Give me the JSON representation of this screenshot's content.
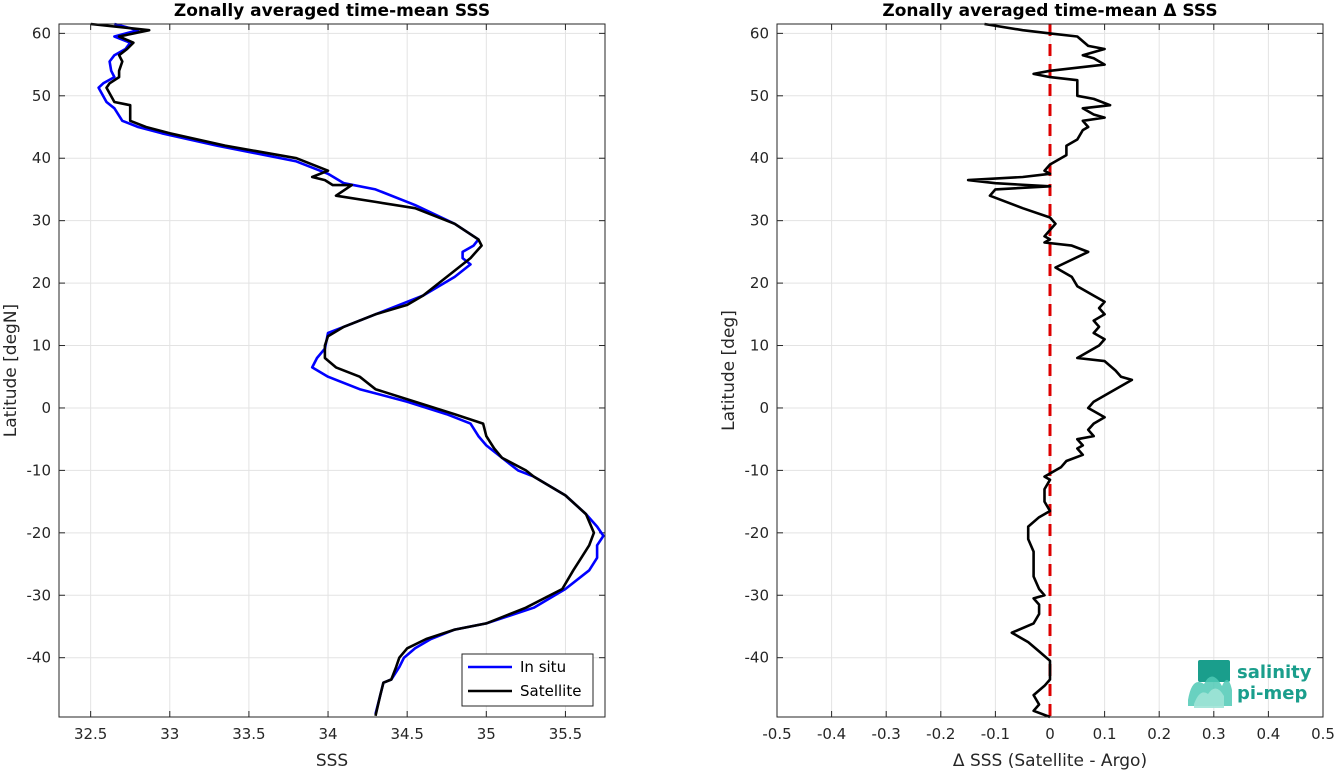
{
  "chart_data": [
    {
      "type": "line",
      "title": "Zonally averaged time-mean SSS",
      "xlabel": "SSS",
      "ylabel": "Latitude [degN]",
      "xlim": [
        32.3,
        35.75
      ],
      "ylim": [
        -49.5,
        61.5
      ],
      "xticks": [
        "32.5",
        "33",
        "33.5",
        "34",
        "34.5",
        "35",
        "35.5"
      ],
      "yticks": [
        "60",
        "50",
        "40",
        "30",
        "20",
        "10",
        "0",
        "-10",
        "-20",
        "-30",
        "-40"
      ],
      "grid": true,
      "legend_position": "bottom-right",
      "series": [
        {
          "name": "In situ",
          "color": "#0000ff",
          "points": [
            [
              32.65,
              61.5
            ],
            [
              32.8,
              60.5
            ],
            [
              32.65,
              59.5
            ],
            [
              32.75,
              58.5
            ],
            [
              32.72,
              57.5
            ],
            [
              32.65,
              56.5
            ],
            [
              32.62,
              55.5
            ],
            [
              32.63,
              54
            ],
            [
              32.65,
              53
            ],
            [
              32.58,
              52
            ],
            [
              32.55,
              51.3
            ],
            [
              32.6,
              49
            ],
            [
              32.65,
              48
            ],
            [
              32.7,
              46
            ],
            [
              32.8,
              45
            ],
            [
              32.95,
              44
            ],
            [
              33.3,
              42
            ],
            [
              33.8,
              39.5
            ],
            [
              34.0,
              37.5
            ],
            [
              34.1,
              36
            ],
            [
              34.3,
              35
            ],
            [
              34.55,
              32.5
            ],
            [
              34.8,
              29.5
            ],
            [
              34.95,
              27
            ],
            [
              34.92,
              26
            ],
            [
              34.85,
              25
            ],
            [
              34.85,
              24
            ],
            [
              34.9,
              23
            ],
            [
              34.8,
              21
            ],
            [
              34.6,
              18
            ],
            [
              34.45,
              16.5
            ],
            [
              34.3,
              15
            ],
            [
              34.1,
              13
            ],
            [
              34.0,
              12
            ],
            [
              33.98,
              9.5
            ],
            [
              33.93,
              8
            ],
            [
              33.9,
              6.5
            ],
            [
              34.0,
              5
            ],
            [
              34.2,
              3
            ],
            [
              34.5,
              1
            ],
            [
              34.75,
              -1
            ],
            [
              34.9,
              -2.5
            ],
            [
              34.95,
              -4.5
            ],
            [
              35.0,
              -6
            ],
            [
              35.1,
              -8
            ],
            [
              35.2,
              -10
            ],
            [
              35.3,
              -11
            ],
            [
              35.5,
              -14
            ],
            [
              35.63,
              -17
            ],
            [
              35.7,
              -19
            ],
            [
              35.74,
              -20.5
            ],
            [
              35.7,
              -22
            ],
            [
              35.7,
              -24
            ],
            [
              35.65,
              -26
            ],
            [
              35.5,
              -29
            ],
            [
              35.3,
              -32
            ],
            [
              35.0,
              -34.5
            ],
            [
              34.8,
              -35.5
            ],
            [
              34.65,
              -37
            ],
            [
              34.55,
              -38.5
            ],
            [
              34.48,
              -40
            ],
            [
              34.45,
              -41.5
            ],
            [
              34.4,
              -43.5
            ],
            [
              34.35,
              -44
            ],
            [
              34.33,
              -46
            ],
            [
              34.3,
              -49
            ]
          ]
        },
        {
          "name": "Satellite",
          "color": "#000000",
          "points": [
            [
              32.5,
              61.5
            ],
            [
              32.87,
              60.5
            ],
            [
              32.68,
              59.5
            ],
            [
              32.77,
              58.5
            ],
            [
              32.73,
              57.5
            ],
            [
              32.68,
              56.5
            ],
            [
              32.7,
              55.5
            ],
            [
              32.68,
              54
            ],
            [
              32.68,
              53
            ],
            [
              32.62,
              52
            ],
            [
              32.6,
              51.3
            ],
            [
              32.65,
              49
            ],
            [
              32.75,
              48.5
            ],
            [
              32.75,
              46
            ],
            [
              32.85,
              45
            ],
            [
              33.0,
              44
            ],
            [
              33.35,
              42
            ],
            [
              33.8,
              40
            ],
            [
              34.0,
              38
            ],
            [
              33.9,
              37
            ],
            [
              33.98,
              36.5
            ],
            [
              34.03,
              35.7
            ],
            [
              34.15,
              35.7
            ],
            [
              34.05,
              34
            ],
            [
              34.3,
              33
            ],
            [
              34.55,
              32
            ],
            [
              34.8,
              29.5
            ],
            [
              34.95,
              27
            ],
            [
              34.97,
              26
            ],
            [
              34.9,
              24
            ],
            [
              34.8,
              22
            ],
            [
              34.6,
              18
            ],
            [
              34.5,
              16.5
            ],
            [
              34.3,
              15
            ],
            [
              34.1,
              13
            ],
            [
              34.0,
              11.5
            ],
            [
              33.98,
              10
            ],
            [
              33.98,
              8
            ],
            [
              34.05,
              6.5
            ],
            [
              34.2,
              5
            ],
            [
              34.3,
              3
            ],
            [
              34.55,
              1
            ],
            [
              34.8,
              -1
            ],
            [
              34.98,
              -2.5
            ],
            [
              35.0,
              -4.5
            ],
            [
              35.05,
              -6.5
            ],
            [
              35.1,
              -8
            ],
            [
              35.25,
              -10
            ],
            [
              35.3,
              -11
            ],
            [
              35.5,
              -14
            ],
            [
              35.63,
              -17
            ],
            [
              35.68,
              -20
            ],
            [
              35.65,
              -22
            ],
            [
              35.6,
              -24
            ],
            [
              35.55,
              -26
            ],
            [
              35.48,
              -29
            ],
            [
              35.25,
              -32
            ],
            [
              35.0,
              -34.5
            ],
            [
              34.8,
              -35.5
            ],
            [
              34.62,
              -37
            ],
            [
              34.5,
              -38.5
            ],
            [
              34.45,
              -40
            ],
            [
              34.43,
              -41.5
            ],
            [
              34.4,
              -43.5
            ],
            [
              34.35,
              -44
            ],
            [
              34.33,
              -46
            ],
            [
              34.3,
              -49.3
            ]
          ]
        }
      ]
    },
    {
      "type": "line",
      "title": "Zonally averaged time-mean Δ SSS",
      "xlabel": "Δ SSS (Satellite - Argo)",
      "ylabel": "Latitude [deg]",
      "xlim": [
        -0.5,
        0.5
      ],
      "ylim": [
        -49.5,
        61.5
      ],
      "xticks": [
        "-0.5",
        "-0.4",
        "-0.3",
        "-0.2",
        "-0.1",
        "0",
        "0.1",
        "0.2",
        "0.3",
        "0.4",
        "0.5"
      ],
      "yticks": [
        "60",
        "50",
        "40",
        "30",
        "20",
        "10",
        "0",
        "-10",
        "-20",
        "-30",
        "-40"
      ],
      "grid": true,
      "reference_line": {
        "x": 0,
        "color": "#dd0000",
        "style": "dashed"
      },
      "series": [
        {
          "name": "",
          "color": "#000000",
          "points": [
            [
              -0.12,
              61.5
            ],
            [
              -0.05,
              60.5
            ],
            [
              0.0,
              60
            ],
            [
              0.05,
              59.5
            ],
            [
              0.07,
              58
            ],
            [
              0.1,
              57.5
            ],
            [
              0.06,
              56.5
            ],
            [
              0.08,
              56
            ],
            [
              0.1,
              55
            ],
            [
              0.05,
              54.5
            ],
            [
              0.0,
              54
            ],
            [
              -0.03,
              53.5
            ],
            [
              0.0,
              53
            ],
            [
              0.05,
              52.5
            ],
            [
              0.05,
              50
            ],
            [
              0.08,
              49.5
            ],
            [
              0.11,
              48.5
            ],
            [
              0.06,
              48
            ],
            [
              0.08,
              47
            ],
            [
              0.1,
              46.5
            ],
            [
              0.06,
              46
            ],
            [
              0.07,
              45
            ],
            [
              0.06,
              44.5
            ],
            [
              0.05,
              43
            ],
            [
              0.03,
              42
            ],
            [
              0.03,
              40.5
            ],
            [
              0.0,
              39
            ],
            [
              -0.01,
              38
            ],
            [
              0.0,
              37.5
            ],
            [
              -0.05,
              37
            ],
            [
              -0.15,
              36.5
            ],
            [
              -0.1,
              36
            ],
            [
              0.0,
              35.5
            ],
            [
              -0.1,
              35
            ],
            [
              -0.11,
              34
            ],
            [
              -0.05,
              32
            ],
            [
              0.0,
              30.5
            ],
            [
              0.01,
              29.5
            ],
            [
              0.0,
              28.5
            ],
            [
              -0.01,
              27.5
            ],
            [
              0.0,
              27
            ],
            [
              -0.01,
              26.5
            ],
            [
              0.04,
              26
            ],
            [
              0.07,
              25
            ],
            [
              0.01,
              22.5
            ],
            [
              0.02,
              22
            ],
            [
              0.04,
              21
            ],
            [
              0.05,
              19.5
            ],
            [
              0.08,
              18
            ],
            [
              0.1,
              17
            ],
            [
              0.09,
              16
            ],
            [
              0.1,
              15
            ],
            [
              0.08,
              14
            ],
            [
              0.09,
              13
            ],
            [
              0.08,
              12
            ],
            [
              0.1,
              11
            ],
            [
              0.09,
              10
            ],
            [
              0.07,
              9
            ],
            [
              0.05,
              8
            ],
            [
              0.1,
              7.5
            ],
            [
              0.12,
              6
            ],
            [
              0.13,
              5
            ],
            [
              0.15,
              4.5
            ],
            [
              0.1,
              2
            ],
            [
              0.08,
              1
            ],
            [
              0.07,
              0
            ],
            [
              0.1,
              -1.5
            ],
            [
              0.08,
              -2.5
            ],
            [
              0.07,
              -3.5
            ],
            [
              0.08,
              -4.5
            ],
            [
              0.05,
              -5
            ],
            [
              0.06,
              -6
            ],
            [
              0.05,
              -6.5
            ],
            [
              0.06,
              -7.5
            ],
            [
              0.03,
              -8.5
            ],
            [
              0.02,
              -9.5
            ],
            [
              0.0,
              -10.5
            ],
            [
              -0.01,
              -11
            ],
            [
              0.0,
              -11.5
            ],
            [
              -0.01,
              -13
            ],
            [
              -0.01,
              -15
            ],
            [
              0.0,
              -16.5
            ],
            [
              -0.02,
              -17.5
            ],
            [
              -0.04,
              -19
            ],
            [
              -0.04,
              -21
            ],
            [
              -0.03,
              -23
            ],
            [
              -0.03,
              -25
            ],
            [
              -0.03,
              -27
            ],
            [
              -0.02,
              -29
            ],
            [
              -0.01,
              -30
            ],
            [
              -0.03,
              -30.5
            ],
            [
              -0.02,
              -31.5
            ],
            [
              -0.02,
              -33
            ],
            [
              -0.03,
              -34.5
            ],
            [
              -0.07,
              -36
            ],
            [
              -0.04,
              -37.5
            ],
            [
              -0.02,
              -39
            ],
            [
              0.0,
              -40.5
            ],
            [
              0.0,
              -41.5
            ],
            [
              0.0,
              -42.5
            ],
            [
              0.0,
              -43.5
            ],
            [
              -0.01,
              -44.5
            ],
            [
              -0.03,
              -46
            ],
            [
              -0.02,
              -47.5
            ],
            [
              -0.03,
              -48.5
            ],
            [
              0.0,
              -49.5
            ]
          ]
        }
      ]
    }
  ],
  "logo": {
    "line1": "salinity",
    "line2": "pi-mep",
    "text_color": "#1a9e8c",
    "accent_color": "#4fc9b5"
  }
}
